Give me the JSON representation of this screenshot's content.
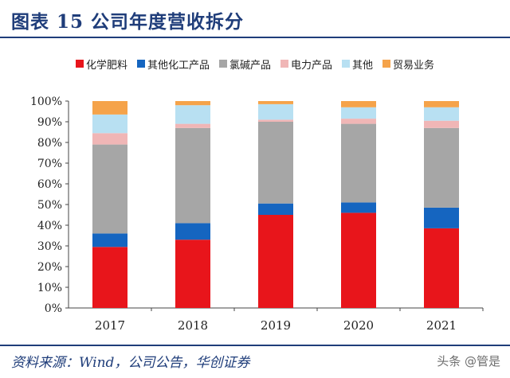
{
  "figure": {
    "title": "图表 15   公司年度营收拆分",
    "source": "资料来源：Wind，公司公告，华创证券",
    "watermark": "头条 @管是"
  },
  "chart_data": {
    "type": "bar",
    "stacked": true,
    "categories": [
      "2017",
      "2018",
      "2019",
      "2020",
      "2021"
    ],
    "ylim": [
      0,
      100
    ],
    "yticks": [
      "0%",
      "10%",
      "20%",
      "30%",
      "40%",
      "50%",
      "60%",
      "70%",
      "80%",
      "90%",
      "100%"
    ],
    "legend_position": "top",
    "grid": false,
    "series": [
      {
        "name": "化学肥料",
        "color": "#e8151b",
        "values": [
          29.5,
          33,
          45,
          46,
          38.5
        ]
      },
      {
        "name": "其他化工产品",
        "color": "#1565c0",
        "values": [
          6.5,
          8,
          5.5,
          5,
          10
        ]
      },
      {
        "name": "氯碱产品",
        "color": "#a6a6a6",
        "values": [
          43,
          46,
          39.5,
          38,
          38.5
        ]
      },
      {
        "name": "电力产品",
        "color": "#f0b6b6",
        "values": [
          5.5,
          2,
          1,
          2.5,
          3.5
        ]
      },
      {
        "name": "其他",
        "color": "#b8e0f2",
        "values": [
          9,
          9,
          7.5,
          5.5,
          6.5
        ]
      },
      {
        "name": "贸易业务",
        "color": "#f5a34a",
        "values": [
          6.5,
          2,
          1.5,
          3,
          3
        ]
      }
    ]
  }
}
